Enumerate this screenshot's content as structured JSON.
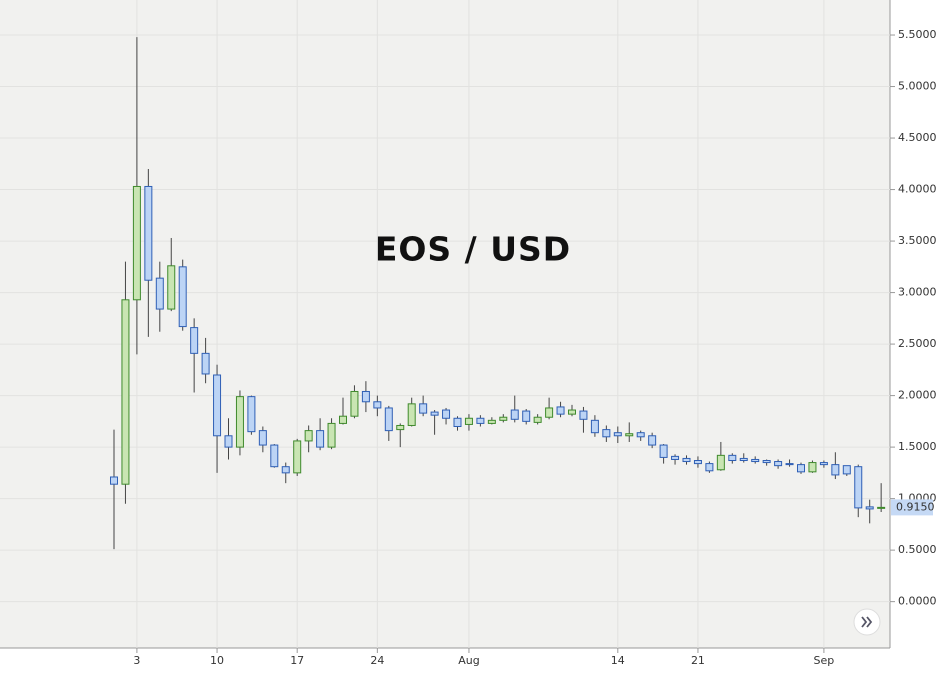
{
  "chart_data": {
    "type": "candlestick",
    "title": "EOS / USD",
    "categories": [
      null,
      null,
      "3",
      null,
      null,
      null,
      null,
      null,
      null,
      "10",
      null,
      null,
      null,
      null,
      null,
      null,
      "17",
      null,
      null,
      null,
      null,
      null,
      null,
      "24",
      null,
      null,
      null,
      null,
      null,
      null,
      null,
      "Aug",
      null,
      null,
      null,
      null,
      null,
      null,
      null,
      null,
      null,
      null,
      null,
      null,
      "14",
      null,
      null,
      null,
      null,
      null,
      null,
      "21",
      null,
      null,
      null,
      null,
      null,
      null,
      null,
      null,
      null,
      null,
      "Sep",
      null,
      null,
      null,
      null,
      null
    ],
    "open": [
      1.21,
      1.14,
      2.93,
      4.03,
      3.14,
      2.84,
      3.25,
      2.66,
      2.41,
      2.2,
      1.61,
      1.5,
      1.99,
      1.66,
      1.52,
      1.31,
      1.25,
      1.56,
      1.66,
      1.5,
      1.73,
      1.8,
      2.04,
      1.94,
      1.88,
      1.67,
      1.71,
      1.92,
      1.84,
      1.86,
      1.78,
      1.72,
      1.78,
      1.73,
      1.76,
      1.86,
      1.85,
      1.74,
      1.79,
      1.89,
      1.82,
      1.85,
      1.76,
      1.67,
      1.64,
      1.61,
      1.64,
      1.61,
      1.52,
      1.41,
      1.39,
      1.37,
      1.34,
      1.28,
      1.42,
      1.39,
      1.38,
      1.37,
      1.36,
      1.34,
      1.33,
      1.26,
      1.35,
      1.33,
      1.32,
      1.31,
      0.92,
      0.91
    ],
    "high": [
      1.67,
      3.3,
      5.48,
      4.2,
      3.3,
      3.53,
      3.32,
      2.75,
      2.56,
      2.3,
      1.78,
      2.05,
      2.0,
      1.7,
      1.53,
      1.35,
      1.58,
      1.71,
      1.78,
      1.78,
      1.98,
      2.1,
      2.14,
      2.0,
      1.9,
      1.73,
      1.98,
      2.0,
      1.86,
      1.88,
      1.8,
      1.82,
      1.81,
      1.79,
      1.82,
      2.0,
      1.87,
      1.82,
      1.98,
      1.94,
      1.91,
      1.89,
      1.81,
      1.71,
      1.7,
      1.74,
      1.66,
      1.64,
      1.53,
      1.43,
      1.42,
      1.41,
      1.36,
      1.55,
      1.44,
      1.44,
      1.41,
      1.38,
      1.38,
      1.38,
      1.35,
      1.37,
      1.37,
      1.45,
      1.31,
      1.33,
      0.99,
      1.15
    ],
    "low": [
      0.51,
      0.95,
      2.4,
      2.57,
      2.62,
      2.82,
      2.63,
      2.03,
      2.12,
      1.25,
      1.38,
      1.42,
      1.62,
      1.45,
      1.3,
      1.15,
      1.22,
      1.45,
      1.47,
      1.48,
      1.72,
      1.78,
      1.84,
      1.8,
      1.56,
      1.5,
      1.7,
      1.8,
      1.62,
      1.72,
      1.66,
      1.66,
      1.7,
      1.72,
      1.74,
      1.74,
      1.72,
      1.72,
      1.77,
      1.79,
      1.8,
      1.64,
      1.6,
      1.55,
      1.54,
      1.55,
      1.56,
      1.49,
      1.34,
      1.33,
      1.33,
      1.3,
      1.25,
      1.27,
      1.34,
      1.35,
      1.34,
      1.32,
      1.29,
      1.31,
      1.24,
      1.25,
      1.3,
      1.19,
      1.22,
      0.82,
      0.76,
      0.87
    ],
    "close": [
      1.14,
      2.93,
      4.03,
      3.12,
      2.84,
      3.26,
      2.67,
      2.41,
      2.21,
      1.61,
      1.5,
      1.99,
      1.65,
      1.52,
      1.31,
      1.25,
      1.56,
      1.66,
      1.5,
      1.73,
      1.8,
      2.04,
      1.94,
      1.88,
      1.66,
      1.71,
      1.92,
      1.83,
      1.81,
      1.78,
      1.7,
      1.78,
      1.73,
      1.76,
      1.79,
      1.77,
      1.75,
      1.79,
      1.88,
      1.82,
      1.86,
      1.77,
      1.64,
      1.6,
      1.61,
      1.63,
      1.6,
      1.52,
      1.4,
      1.38,
      1.36,
      1.34,
      1.27,
      1.42,
      1.37,
      1.37,
      1.36,
      1.35,
      1.32,
      1.33,
      1.26,
      1.35,
      1.33,
      1.23,
      1.24,
      0.91,
      0.9,
      0.915
    ],
    "up_color": "#c9e5b3",
    "up_edge": "#3f8a2c",
    "down_color": "#bcd4f5",
    "down_edge": "#2f5fb5",
    "ylim": [
      -0.45,
      5.84
    ],
    "yticks": [
      {
        "value": 0,
        "label": "0.0000"
      },
      {
        "value": 0.5,
        "label": "0.5000"
      },
      {
        "value": 1,
        "label": "1.0000"
      },
      {
        "value": 1.5,
        "label": "1.5000"
      },
      {
        "value": 2,
        "label": "2.0000"
      },
      {
        "value": 2.5,
        "label": "2.5000"
      },
      {
        "value": 3,
        "label": "3.0000"
      },
      {
        "value": 3.5,
        "label": "3.5000"
      },
      {
        "value": 4,
        "label": "4.0000"
      },
      {
        "value": 4.5,
        "label": "4.5000"
      },
      {
        "value": 5,
        "label": "5.0000"
      },
      {
        "value": 5.5,
        "label": "5.5000"
      }
    ],
    "last_price": {
      "value": 0.915,
      "label": "0.9150"
    },
    "grid": true
  }
}
